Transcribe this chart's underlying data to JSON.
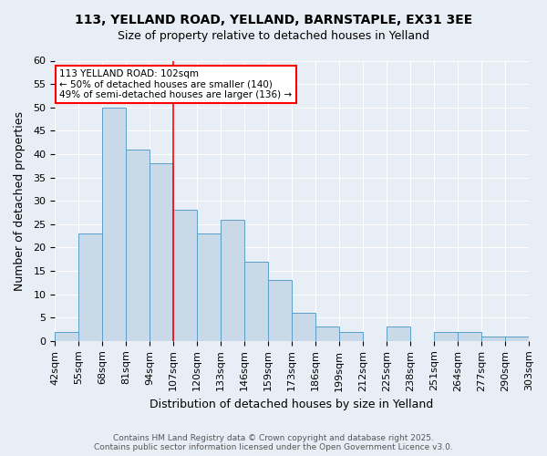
{
  "title1": "113, YELLAND ROAD, YELLAND, BARNSTAPLE, EX31 3EE",
  "title2": "Size of property relative to detached houses in Yelland",
  "xlabel": "Distribution of detached houses by size in Yelland",
  "ylabel": "Number of detached properties",
  "categories": [
    "42sqm",
    "55sqm",
    "68sqm",
    "81sqm",
    "94sqm",
    "107sqm",
    "120sqm",
    "133sqm",
    "146sqm",
    "159sqm",
    "173sqm",
    "186sqm",
    "199sqm",
    "212sqm",
    "225sqm",
    "238sqm",
    "251sqm",
    "264sqm",
    "277sqm",
    "290sqm",
    "303sqm"
  ],
  "values": [
    2,
    23,
    50,
    41,
    38,
    28,
    23,
    26,
    17,
    13,
    6,
    3,
    2,
    0,
    3,
    0,
    2,
    2,
    1,
    1
  ],
  "bar_color": "#c9d9e8",
  "bar_edge_color": "#5a9fc9",
  "red_line_index": 5,
  "annotation_title": "113 YELLAND ROAD: 102sqm",
  "annotation_line1": "← 50% of detached houses are smaller (140)",
  "annotation_line2": "49% of semi-detached houses are larger (136) →",
  "ylim": [
    0,
    60
  ],
  "yticks": [
    0,
    5,
    10,
    15,
    20,
    25,
    30,
    35,
    40,
    45,
    50,
    55,
    60
  ],
  "footer1": "Contains HM Land Registry data © Crown copyright and database right 2025.",
  "footer2": "Contains public sector information licensed under the Open Government Licence v3.0.",
  "background_color": "#e8eef5",
  "plot_bg_color": "#e8eef5",
  "grid_color": "#ffffff"
}
